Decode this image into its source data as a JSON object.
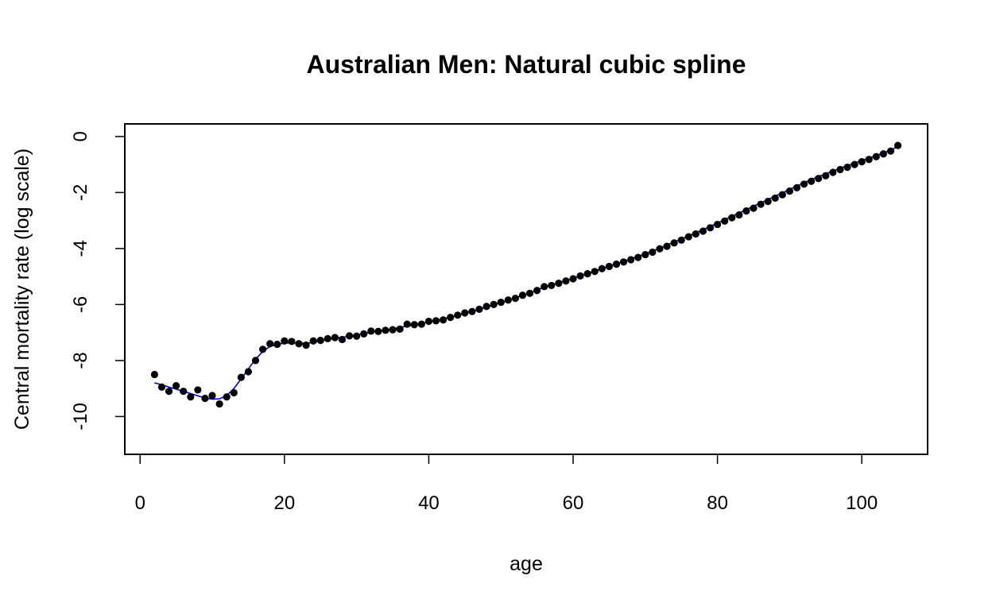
{
  "chart_data": {
    "type": "scatter",
    "title": "Australian Men: Natural cubic spline",
    "xlabel": "age",
    "ylabel": "Central mortality rate (log scale)",
    "xlim": [
      -2.12,
      109.12
    ],
    "ylim": [
      -11.35,
      0.45
    ],
    "x_ticks": [
      0,
      20,
      40,
      60,
      80,
      100
    ],
    "y_ticks": [
      0,
      -2,
      -4,
      -6,
      -8,
      -10
    ],
    "grid": false,
    "legend": "none",
    "series": [
      {
        "kind": "points",
        "color": "#000000",
        "x": [
          2,
          3,
          4,
          5,
          6,
          7,
          8,
          9,
          10,
          11,
          12,
          13,
          14,
          15,
          16,
          17,
          18,
          19,
          20,
          21,
          22,
          23,
          24,
          25,
          26,
          27,
          28,
          29,
          30,
          31,
          32,
          33,
          34,
          35,
          36,
          37,
          38,
          39,
          40,
          41,
          42,
          43,
          44,
          45,
          46,
          47,
          48,
          49,
          50,
          51,
          52,
          53,
          54,
          55,
          56,
          57,
          58,
          59,
          60,
          61,
          62,
          63,
          64,
          65,
          66,
          67,
          68,
          69,
          70,
          71,
          72,
          73,
          74,
          75,
          76,
          77,
          78,
          79,
          80,
          81,
          82,
          83,
          84,
          85,
          86,
          87,
          88,
          89,
          90,
          91,
          92,
          93,
          94,
          95,
          96,
          97,
          98,
          99,
          100,
          101,
          102,
          103,
          104,
          105
        ],
        "y": [
          -8.5,
          -8.95,
          -9.1,
          -8.9,
          -9.1,
          -9.3,
          -9.05,
          -9.35,
          -9.25,
          -9.55,
          -9.3,
          -9.15,
          -8.6,
          -8.4,
          -8.0,
          -7.6,
          -7.4,
          -7.42,
          -7.3,
          -7.32,
          -7.4,
          -7.45,
          -7.3,
          -7.28,
          -7.22,
          -7.18,
          -7.25,
          -7.12,
          -7.13,
          -7.05,
          -6.95,
          -6.96,
          -6.92,
          -6.9,
          -6.88,
          -6.7,
          -6.72,
          -6.7,
          -6.6,
          -6.58,
          -6.55,
          -6.46,
          -6.38,
          -6.3,
          -6.25,
          -6.17,
          -6.07,
          -6.0,
          -5.92,
          -5.84,
          -5.78,
          -5.67,
          -5.6,
          -5.5,
          -5.36,
          -5.32,
          -5.24,
          -5.16,
          -5.08,
          -4.98,
          -4.9,
          -4.82,
          -4.72,
          -4.64,
          -4.56,
          -4.48,
          -4.4,
          -4.32,
          -4.22,
          -4.13,
          -4.01,
          -3.92,
          -3.8,
          -3.7,
          -3.58,
          -3.48,
          -3.38,
          -3.26,
          -3.14,
          -3.02,
          -2.9,
          -2.8,
          -2.66,
          -2.56,
          -2.42,
          -2.32,
          -2.2,
          -2.08,
          -1.95,
          -1.83,
          -1.7,
          -1.6,
          -1.5,
          -1.4,
          -1.28,
          -1.18,
          -1.1,
          -1.0,
          -0.9,
          -0.82,
          -0.72,
          -0.62,
          -0.52,
          -0.32
        ]
      },
      {
        "kind": "line",
        "color": "#0000cc",
        "x": [
          2,
          3,
          4,
          5,
          6,
          7,
          8,
          9,
          10,
          11,
          12,
          13,
          14,
          15,
          16,
          17,
          18,
          19,
          20,
          21,
          22,
          23,
          24,
          25,
          26,
          27,
          28,
          29,
          30,
          31,
          32,
          33,
          34,
          35,
          36,
          37,
          38,
          39,
          40,
          41,
          42,
          43,
          44,
          45,
          46,
          47,
          48,
          49,
          50,
          51,
          52,
          53,
          54,
          55,
          56,
          57,
          58,
          59,
          60,
          61,
          62,
          63,
          64,
          65,
          66,
          67,
          68,
          69,
          70,
          71,
          72,
          73,
          74,
          75,
          76,
          77,
          78,
          79,
          80,
          81,
          82,
          83,
          84,
          85,
          86,
          87,
          88,
          89,
          90,
          91,
          92,
          93,
          94,
          95,
          96,
          97,
          98,
          99,
          100,
          101,
          102,
          103,
          104,
          105
        ],
        "y": [
          -8.8,
          -8.86,
          -8.95,
          -9.02,
          -9.1,
          -9.18,
          -9.26,
          -9.34,
          -9.38,
          -9.37,
          -9.25,
          -9.0,
          -8.66,
          -8.3,
          -7.95,
          -7.68,
          -7.5,
          -7.42,
          -7.38,
          -7.37,
          -7.38,
          -7.38,
          -7.36,
          -7.3,
          -7.25,
          -7.2,
          -7.17,
          -7.13,
          -7.09,
          -7.04,
          -6.99,
          -6.95,
          -6.91,
          -6.87,
          -6.82,
          -6.77,
          -6.72,
          -6.67,
          -6.62,
          -6.57,
          -6.51,
          -6.45,
          -6.38,
          -6.31,
          -6.24,
          -6.17,
          -6.09,
          -6.01,
          -5.93,
          -5.85,
          -5.76,
          -5.67,
          -5.58,
          -5.48,
          -5.38,
          -5.3,
          -5.22,
          -5.14,
          -5.06,
          -4.97,
          -4.89,
          -4.81,
          -4.72,
          -4.63,
          -4.54,
          -4.46,
          -4.37,
          -4.28,
          -4.19,
          -4.09,
          -3.99,
          -3.88,
          -3.77,
          -3.66,
          -3.55,
          -3.44,
          -3.33,
          -3.21,
          -3.09,
          -2.97,
          -2.85,
          -2.73,
          -2.61,
          -2.49,
          -2.37,
          -2.25,
          -2.13,
          -2.01,
          -1.89,
          -1.77,
          -1.65,
          -1.54,
          -1.43,
          -1.33,
          -1.23,
          -1.13,
          -1.04,
          -0.95,
          -0.86,
          -0.77,
          -0.68,
          -0.58,
          -0.48,
          -0.36
        ]
      }
    ]
  }
}
